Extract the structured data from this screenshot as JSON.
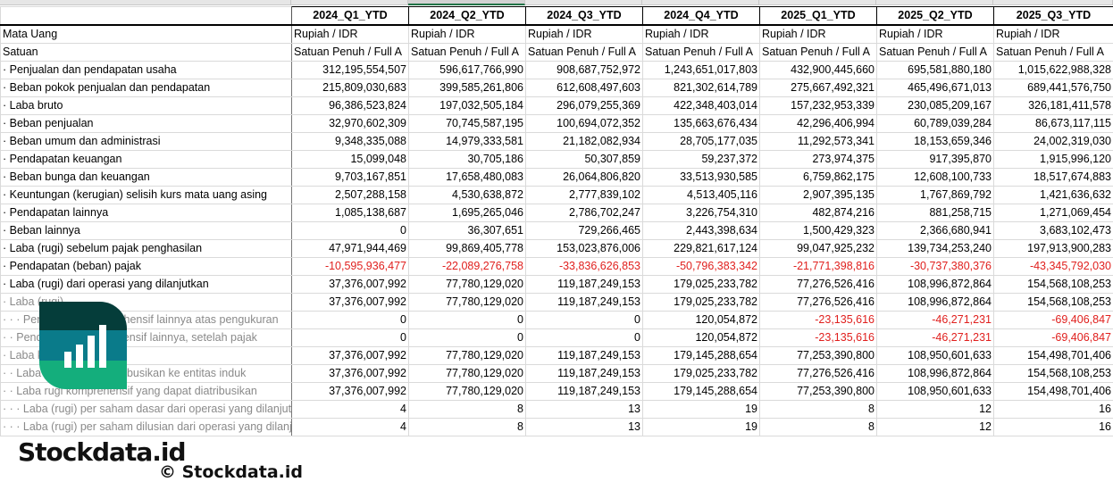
{
  "sheet": {
    "selected_column": "2024_Q2_YTD",
    "columns": [
      "2024_Q1_YTD",
      "2024_Q2_YTD",
      "2024_Q3_YTD",
      "2024_Q4_YTD",
      "2025_Q1_YTD",
      "2025_Q2_YTD",
      "2025_Q3_YTD"
    ],
    "meta_rows": [
      {
        "label": "Mata Uang",
        "values": [
          "Rupiah / IDR",
          "Rupiah / IDR",
          "Rupiah / IDR",
          "Rupiah / IDR",
          "Rupiah / IDR",
          "Rupiah / IDR",
          "Rupiah / IDR"
        ]
      },
      {
        "label": "Satuan",
        "values": [
          "Satuan Penuh / Full A",
          "Satuan Penuh / Full A",
          "Satuan Penuh / Full A",
          "Satuan Penuh / Full A",
          "Satuan Penuh / Full A",
          "Satuan Penuh / Full A",
          "Satuan Penuh / Full A"
        ]
      }
    ],
    "rows": [
      {
        "label": "· Penjualan dan pendapatan usaha",
        "grey": false,
        "values": [
          "312,195,554,507",
          "596,617,766,990",
          "908,687,752,972",
          "1,243,651,017,803",
          "432,900,445,660",
          "695,581,880,180",
          "1,015,622,988,328"
        ]
      },
      {
        "label": "· Beban pokok penjualan dan pendapatan",
        "grey": false,
        "values": [
          "215,809,030,683",
          "399,585,261,806",
          "612,608,497,603",
          "821,302,614,789",
          "275,667,492,321",
          "465,496,671,013",
          "689,441,576,750"
        ]
      },
      {
        "label": "· Laba bruto",
        "grey": false,
        "values": [
          "96,386,523,824",
          "197,032,505,184",
          "296,079,255,369",
          "422,348,403,014",
          "157,232,953,339",
          "230,085,209,167",
          "326,181,411,578"
        ]
      },
      {
        "label": "· Beban penjualan",
        "grey": false,
        "values": [
          "32,970,602,309",
          "70,745,587,195",
          "100,694,072,352",
          "135,663,676,434",
          "42,296,406,994",
          "60,789,039,284",
          "86,673,117,115"
        ]
      },
      {
        "label": "· Beban umum dan administrasi",
        "grey": false,
        "values": [
          "9,348,335,088",
          "14,979,333,581",
          "21,182,082,934",
          "28,705,177,035",
          "11,292,573,341",
          "18,153,659,346",
          "24,002,319,030"
        ]
      },
      {
        "label": "· Pendapatan keuangan",
        "grey": false,
        "values": [
          "15,099,048",
          "30,705,186",
          "50,307,859",
          "59,237,372",
          "273,974,375",
          "917,395,870",
          "1,915,996,120"
        ]
      },
      {
        "label": "· Beban bunga dan keuangan",
        "grey": false,
        "values": [
          "9,703,167,851",
          "17,658,480,083",
          "26,064,806,820",
          "33,513,930,585",
          "6,759,862,175",
          "12,608,100,733",
          "18,517,674,883"
        ]
      },
      {
        "label": "· Keuntungan (kerugian) selisih kurs mata uang asing",
        "grey": false,
        "values": [
          "2,507,288,158",
          "4,530,638,872",
          "2,777,839,102",
          "4,513,405,116",
          "2,907,395,135",
          "1,767,869,792",
          "1,421,636,632"
        ]
      },
      {
        "label": "· Pendapatan lainnya",
        "grey": false,
        "values": [
          "1,085,138,687",
          "1,695,265,046",
          "2,786,702,247",
          "3,226,754,310",
          "482,874,216",
          "881,258,715",
          "1,271,069,454"
        ]
      },
      {
        "label": "· Beban lainnya",
        "grey": false,
        "values": [
          "0",
          "36,307,651",
          "729,266,465",
          "2,443,398,634",
          "1,500,429,323",
          "2,366,680,941",
          "3,683,102,473"
        ]
      },
      {
        "label": "· Laba (rugi) sebelum pajak penghasilan",
        "grey": false,
        "values": [
          "47,971,944,469",
          "99,869,405,778",
          "153,023,876,006",
          "229,821,617,124",
          "99,047,925,232",
          "139,734,253,240",
          "197,913,900,283"
        ]
      },
      {
        "label": "· Pendapatan (beban) pajak",
        "grey": false,
        "values": [
          "-10,595,936,477",
          "-22,089,276,758",
          "-33,836,626,853",
          "-50,796,383,342",
          "-21,771,398,816",
          "-30,737,380,376",
          "-43,345,792,030"
        ]
      },
      {
        "label": "· Laba (rugi) dari operasi yang dilanjutkan",
        "grey": false,
        "values": [
          "37,376,007,992",
          "77,780,129,020",
          "119,187,249,153",
          "179,025,233,782",
          "77,276,526,416",
          "108,996,872,864",
          "154,568,108,253"
        ]
      },
      {
        "label": "· Laba (rugi)",
        "grey": true,
        "values": [
          "37,376,007,992",
          "77,780,129,020",
          "119,187,249,153",
          "179,025,233,782",
          "77,276,526,416",
          "108,996,872,864",
          "154,568,108,253"
        ]
      },
      {
        "label": "· · · Pendapatan komprehensif lainnya atas pengukuran",
        "grey": true,
        "values": [
          "0",
          "0",
          "0",
          "120,054,872",
          "-23,135,616",
          "-46,271,231",
          "-69,406,847"
        ]
      },
      {
        "label": "· · Pendapatan komprehensif lainnya, setelah pajak",
        "grey": true,
        "values": [
          "0",
          "0",
          "0",
          "120,054,872",
          "-23,135,616",
          "-46,271,231",
          "-69,406,847"
        ]
      },
      {
        "label": "· Laba komprehensif",
        "grey": true,
        "values": [
          "37,376,007,992",
          "77,780,129,020",
          "119,187,249,153",
          "179,145,288,654",
          "77,253,390,800",
          "108,950,601,633",
          "154,498,701,406"
        ]
      },
      {
        "label": "· · Laba yang dapat diatribusikan ke entitas induk",
        "grey": true,
        "values": [
          "37,376,007,992",
          "77,780,129,020",
          "119,187,249,153",
          "179,025,233,782",
          "77,276,526,416",
          "108,996,872,864",
          "154,568,108,253"
        ]
      },
      {
        "label": "· · Laba rugi komprehensif yang dapat diatribusikan",
        "grey": true,
        "values": [
          "37,376,007,992",
          "77,780,129,020",
          "119,187,249,153",
          "179,145,288,654",
          "77,253,390,800",
          "108,950,601,633",
          "154,498,701,406"
        ]
      },
      {
        "label": "· · · Laba (rugi) per saham dasar dari operasi yang dilanjutkan",
        "grey": true,
        "values": [
          "4",
          "8",
          "13",
          "19",
          "8",
          "12",
          "16"
        ]
      },
      {
        "label": "· · · Laba (rugi) per saham dilusian dari operasi yang dilanjutkan",
        "grey": true,
        "values": [
          "4",
          "8",
          "13",
          "19",
          "8",
          "12",
          "16"
        ]
      }
    ]
  },
  "watermark": {
    "brand": "Stockdata.id",
    "copyright": "© Stockdata.id",
    "logo_icon": "bar-chart-logo-icon",
    "colors": {
      "dark": "#053d3a",
      "teal": "#0a7b8a",
      "green": "#14ae7c"
    }
  },
  "colors": {
    "negative": "#e0201e",
    "selection": "#217346",
    "grid": "#dadada"
  }
}
